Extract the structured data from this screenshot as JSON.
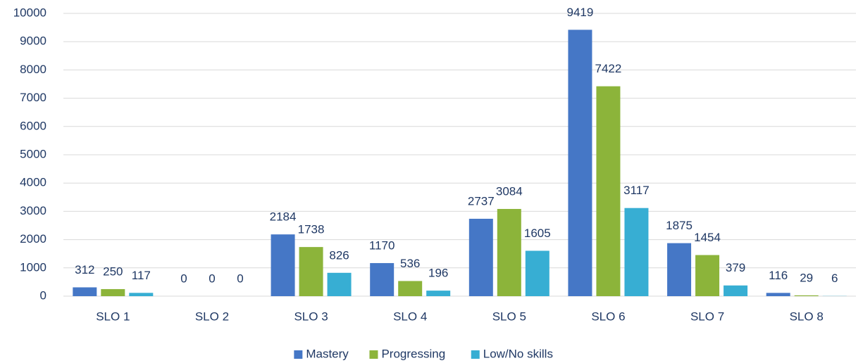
{
  "chart_data": {
    "type": "bar",
    "categories": [
      "SLO 1",
      "SLO 2",
      "SLO 3",
      "SLO 4",
      "SLO 5",
      "SLO 6",
      "SLO 7",
      "SLO 8"
    ],
    "series": [
      {
        "name": "Mastery",
        "color": "#4577c6",
        "values": [
          312,
          0,
          2184,
          1170,
          2737,
          9419,
          1875,
          116
        ]
      },
      {
        "name": "Progressing",
        "color": "#8cb43a",
        "values": [
          250,
          0,
          1738,
          536,
          3084,
          7422,
          1454,
          29
        ]
      },
      {
        "name": "Low/No skills",
        "color": "#37aed3",
        "values": [
          117,
          0,
          826,
          196,
          1605,
          3117,
          379,
          6
        ]
      }
    ],
    "ylim": [
      0,
      10000
    ],
    "yticks": [
      0,
      1000,
      2000,
      3000,
      4000,
      5000,
      6000,
      7000,
      8000,
      9000,
      10000
    ],
    "grid": true,
    "legend": "bottom"
  }
}
